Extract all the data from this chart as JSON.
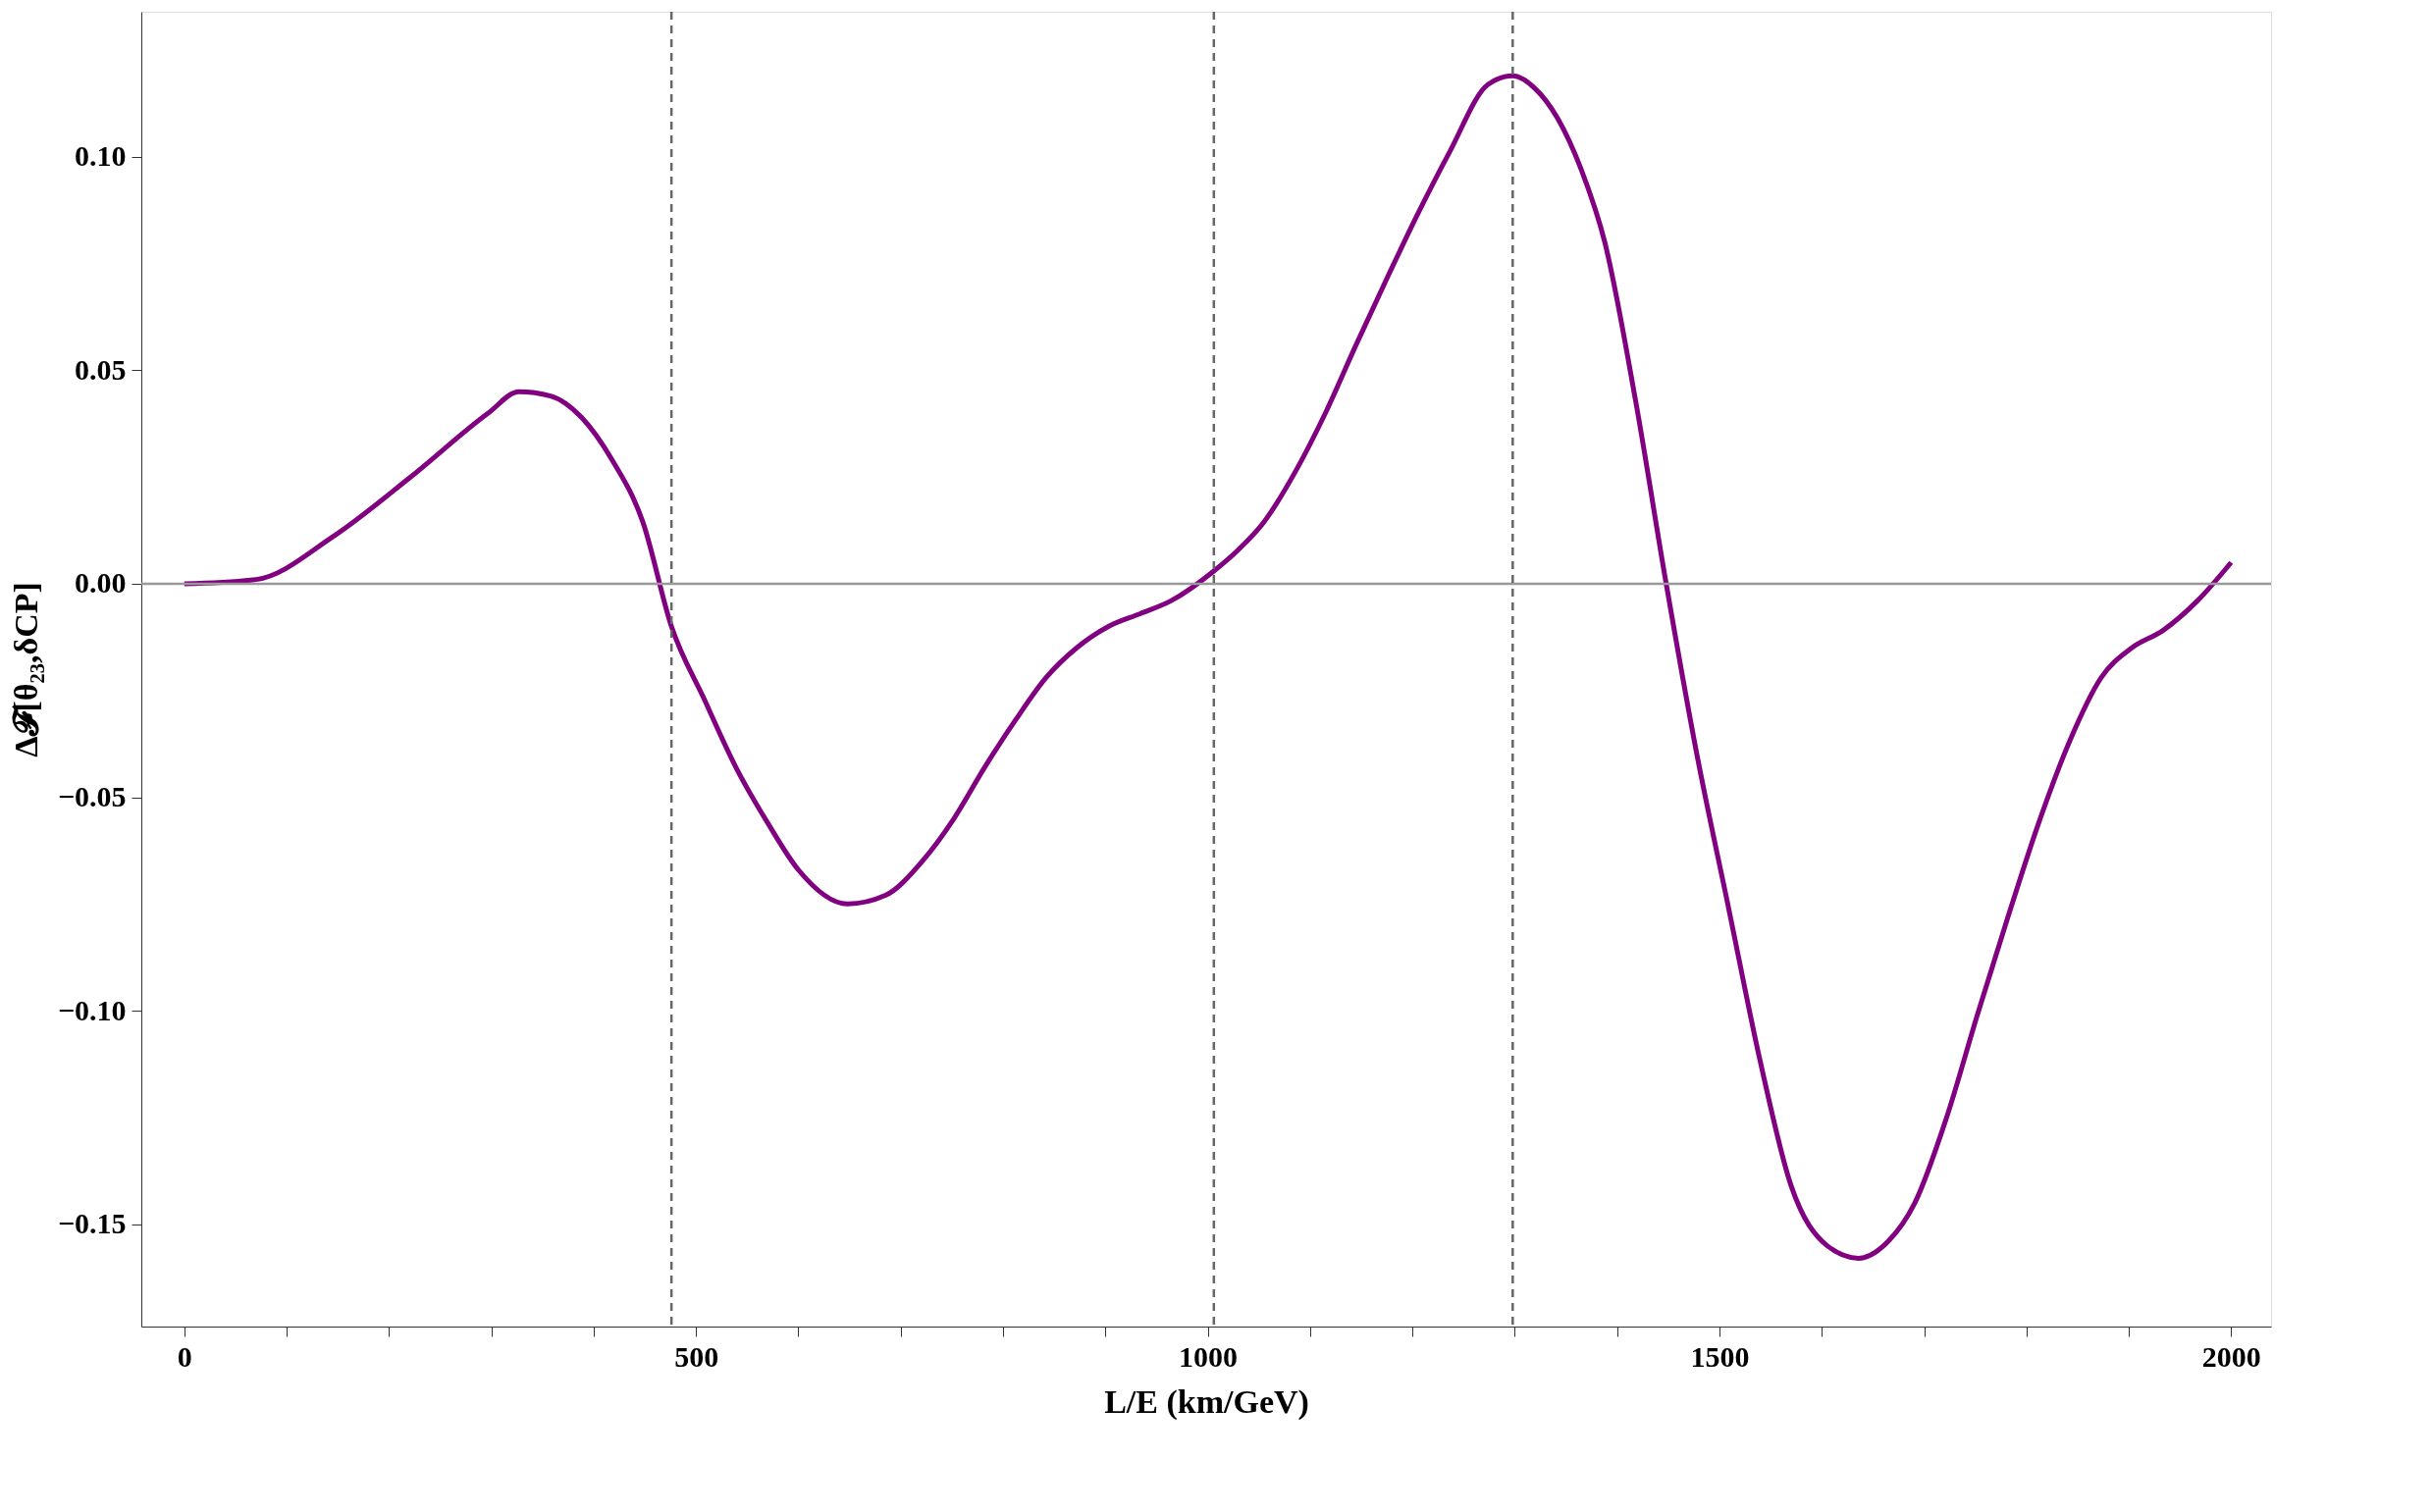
{
  "chart_data": {
    "type": "line",
    "xlabel": "L/E (km/GeV)",
    "ylabel": "Δ𝓕[θ₂₃,δCP]",
    "series": [
      {
        "color": "#800080",
        "x": [
          0,
          70,
          145,
          221,
          297,
          327,
          358,
          388,
          418,
          448,
          476,
          508,
          539,
          570,
          600,
          648,
          685,
          721,
          752,
          782,
          812,
          842,
          872,
          903,
          934,
          964,
          1006,
          1030,
          1055,
          1085,
          1115,
          1145,
          1176,
          1206,
          1236,
          1274,
          1298,
          1320,
          1342,
          1365,
          1388,
          1418,
          1448,
          1478,
          1509,
          1540,
          1570,
          1605,
          1636,
          1665,
          1691,
          1722,
          1752,
          1782,
          1812,
          1842,
          1873,
          1903,
          1933,
          1967,
          2000
        ],
        "values": [
          0,
          0.001,
          0.011,
          0.025,
          0.04,
          0.045,
          0.044,
          0.039,
          0.029,
          0.0145,
          -0.01,
          -0.027,
          -0.043,
          -0.056,
          -0.067,
          -0.075,
          -0.073,
          -0.065,
          -0.055,
          -0.043,
          -0.032,
          -0.022,
          -0.015,
          -0.01,
          -0.007,
          -0.004,
          0.003,
          0.008,
          0.0145,
          0.026,
          0.04,
          0.056,
          0.072,
          0.087,
          0.101,
          0.117,
          0.119,
          0.116,
          0.109,
          0.097,
          0.08,
          0.043,
          0.0,
          -0.04,
          -0.076,
          -0.112,
          -0.141,
          -0.155,
          -0.158,
          -0.154,
          -0.145,
          -0.125,
          -0.101,
          -0.078,
          -0.056,
          -0.037,
          -0.022,
          -0.015,
          -0.011,
          -0.004,
          0.005
        ]
      }
    ],
    "xlim": [
      -42,
      2039
    ],
    "ylim": [
      -0.174,
      0.134
    ],
    "xticks": [
      0,
      {
        "value": 100,
        "label": null
      },
      {
        "value": 200,
        "label": null
      },
      {
        "value": 300,
        "label": null
      },
      {
        "value": 400,
        "label": null
      },
      500,
      {
        "value": 600,
        "label": null
      },
      {
        "value": 700,
        "label": null
      },
      {
        "value": 800,
        "label": null
      },
      {
        "value": 900,
        "label": null
      },
      1000,
      {
        "value": 1100,
        "label": null
      },
      {
        "value": 1200,
        "label": null
      },
      {
        "value": 1300,
        "label": null
      },
      {
        "value": 1400,
        "label": null
      },
      1500,
      {
        "value": 1600,
        "label": null
      },
      {
        "value": 1700,
        "label": null
      },
      {
        "value": 1800,
        "label": null
      },
      {
        "value": 1900,
        "label": null
      },
      2000
    ],
    "yticks": [
      {
        "value": -0.15,
        "label": "−0.15"
      },
      {
        "value": -0.1,
        "label": "−0.10"
      },
      {
        "value": -0.05,
        "label": "−0.05"
      },
      {
        "value": 0,
        "label": "0.00"
      },
      {
        "value": 0.05,
        "label": "0.05"
      },
      {
        "value": 0.1,
        "label": "0.10"
      }
    ],
    "ref_lines": [
      {
        "axis": "y",
        "value": 0,
        "color": "#999999",
        "line_style": "solid"
      },
      {
        "axis": "x",
        "value": 476,
        "color": "#666666",
        "line_style": "dashed"
      },
      {
        "axis": "x",
        "value": 1006,
        "color": "#666666",
        "line_style": "dashed"
      },
      {
        "axis": "x",
        "value": 1298,
        "color": "#666666",
        "line_style": "dashed"
      }
    ],
    "grid": false,
    "marker": "none",
    "line_style": "solid"
  }
}
